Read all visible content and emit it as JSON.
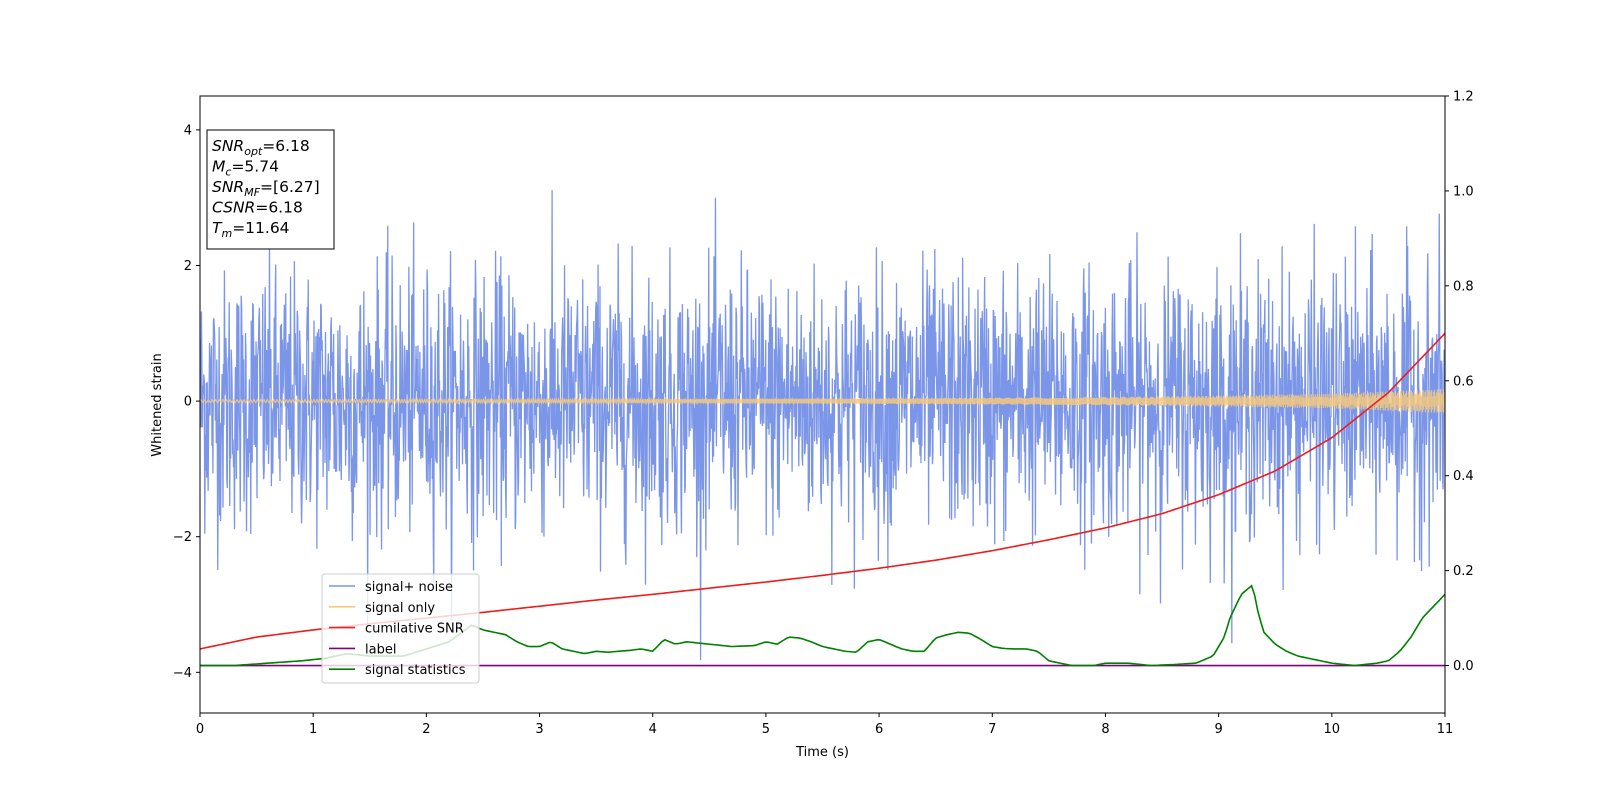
{
  "chart_data": {
    "type": "line",
    "xlabel": "Time (s)",
    "ylabel": "Whitened strain",
    "xlim": [
      0,
      11
    ],
    "ylim": [
      -4.6,
      4.5
    ],
    "y2lim": [
      -0.1,
      1.2
    ],
    "x_ticks": [
      0,
      1,
      2,
      3,
      4,
      5,
      6,
      7,
      8,
      9,
      10,
      11
    ],
    "y_ticks": [
      4,
      2,
      0,
      -2,
      -4
    ],
    "y2_ticks": [
      1.2,
      1.0,
      0.8,
      0.6,
      0.4,
      0.2,
      0.0
    ],
    "x_tick_labels": [
      "0",
      "1",
      "2",
      "3",
      "4",
      "5",
      "6",
      "7",
      "8",
      "9",
      "10",
      "11"
    ],
    "y_tick_labels": [
      "4",
      "2",
      "0",
      "−2",
      "−4"
    ],
    "y2_tick_labels": [
      "1.2",
      "1.0",
      "0.8",
      "0.6",
      "0.4",
      "0.2",
      "0.0"
    ],
    "grid": false,
    "legend_position": "lower-left",
    "annotation": [
      {
        "base": "SNR",
        "sub": "opt",
        "rest": "=6.18"
      },
      {
        "base": "M",
        "sub": "c",
        "rest": "=5.74"
      },
      {
        "base": "SNR",
        "sub": "MF",
        "rest": "=[6.27]"
      },
      {
        "base": "CSNR",
        "sub": "",
        "rest": "=6.18"
      },
      {
        "base": "T",
        "sub": "m",
        "rest": "=11.64"
      }
    ],
    "series": [
      {
        "name": "signal+ noise",
        "color": "#7b96e8",
        "axis": "left",
        "kind": "noise",
        "sigma": 0.95,
        "amplitude_range": [
          -4.15,
          4.1
        ]
      },
      {
        "name": "signal only",
        "color": "#f5c97e",
        "axis": "left",
        "kind": "chirp",
        "envelope": {
          "x": [
            0,
            2,
            4,
            6,
            8,
            9,
            10,
            11
          ],
          "y": [
            0.02,
            0.025,
            0.03,
            0.04,
            0.06,
            0.08,
            0.11,
            0.18
          ]
        }
      },
      {
        "name": "cumilative SNR",
        "color": "#ee1c1c",
        "axis": "right",
        "x": [
          0,
          0.5,
          1,
          1.5,
          2,
          2.5,
          3,
          3.5,
          4,
          4.5,
          5,
          5.5,
          6,
          6.5,
          7,
          7.5,
          8,
          8.5,
          9,
          9.5,
          10,
          10.5,
          11
        ],
        "y": [
          0.035,
          0.06,
          0.075,
          0.088,
          0.1,
          0.112,
          0.125,
          0.138,
          0.15,
          0.163,
          0.176,
          0.19,
          0.205,
          0.222,
          0.242,
          0.265,
          0.29,
          0.32,
          0.36,
          0.41,
          0.48,
          0.575,
          0.7
        ]
      },
      {
        "name": "label",
        "color": "#800080",
        "axis": "right",
        "x": [
          0,
          11
        ],
        "y": [
          0.0,
          0.0
        ]
      },
      {
        "name": "signal statistics",
        "color": "#008000",
        "axis": "right",
        "x": [
          0,
          0.3,
          0.6,
          0.9,
          1.1,
          1.3,
          1.5,
          1.8,
          2.0,
          2.2,
          2.4,
          2.5,
          2.6,
          2.7,
          2.8,
          2.9,
          3.0,
          3.1,
          3.2,
          3.3,
          3.4,
          3.5,
          3.6,
          3.7,
          3.8,
          3.9,
          4.0,
          4.1,
          4.2,
          4.3,
          4.5,
          4.7,
          4.9,
          5.0,
          5.1,
          5.2,
          5.3,
          5.4,
          5.5,
          5.6,
          5.7,
          5.8,
          5.9,
          6.0,
          6.1,
          6.2,
          6.3,
          6.4,
          6.5,
          6.6,
          6.7,
          6.8,
          6.9,
          7.0,
          7.1,
          7.2,
          7.3,
          7.4,
          7.5,
          7.7,
          7.9,
          8.0,
          8.2,
          8.4,
          8.6,
          8.8,
          8.95,
          9.05,
          9.1,
          9.2,
          9.3,
          9.35,
          9.4,
          9.5,
          9.6,
          9.7,
          9.8,
          10.0,
          10.2,
          10.4,
          10.5,
          10.6,
          10.7,
          10.8,
          10.9,
          11.0
        ],
        "y": [
          0.0,
          0.0,
          0.005,
          0.01,
          0.015,
          0.025,
          0.02,
          0.02,
          0.035,
          0.05,
          0.085,
          0.075,
          0.07,
          0.065,
          0.05,
          0.04,
          0.04,
          0.05,
          0.035,
          0.03,
          0.025,
          0.03,
          0.028,
          0.03,
          0.032,
          0.035,
          0.03,
          0.055,
          0.045,
          0.05,
          0.045,
          0.04,
          0.042,
          0.05,
          0.045,
          0.06,
          0.058,
          0.05,
          0.04,
          0.035,
          0.03,
          0.028,
          0.05,
          0.055,
          0.045,
          0.035,
          0.03,
          0.03,
          0.058,
          0.065,
          0.07,
          0.068,
          0.055,
          0.04,
          0.036,
          0.035,
          0.035,
          0.03,
          0.01,
          0.0,
          0.0,
          0.005,
          0.005,
          0.0,
          0.002,
          0.005,
          0.02,
          0.06,
          0.1,
          0.15,
          0.17,
          0.11,
          0.07,
          0.045,
          0.03,
          0.02,
          0.015,
          0.005,
          0.0,
          0.005,
          0.01,
          0.03,
          0.06,
          0.1,
          0.125,
          0.15
        ]
      }
    ]
  }
}
